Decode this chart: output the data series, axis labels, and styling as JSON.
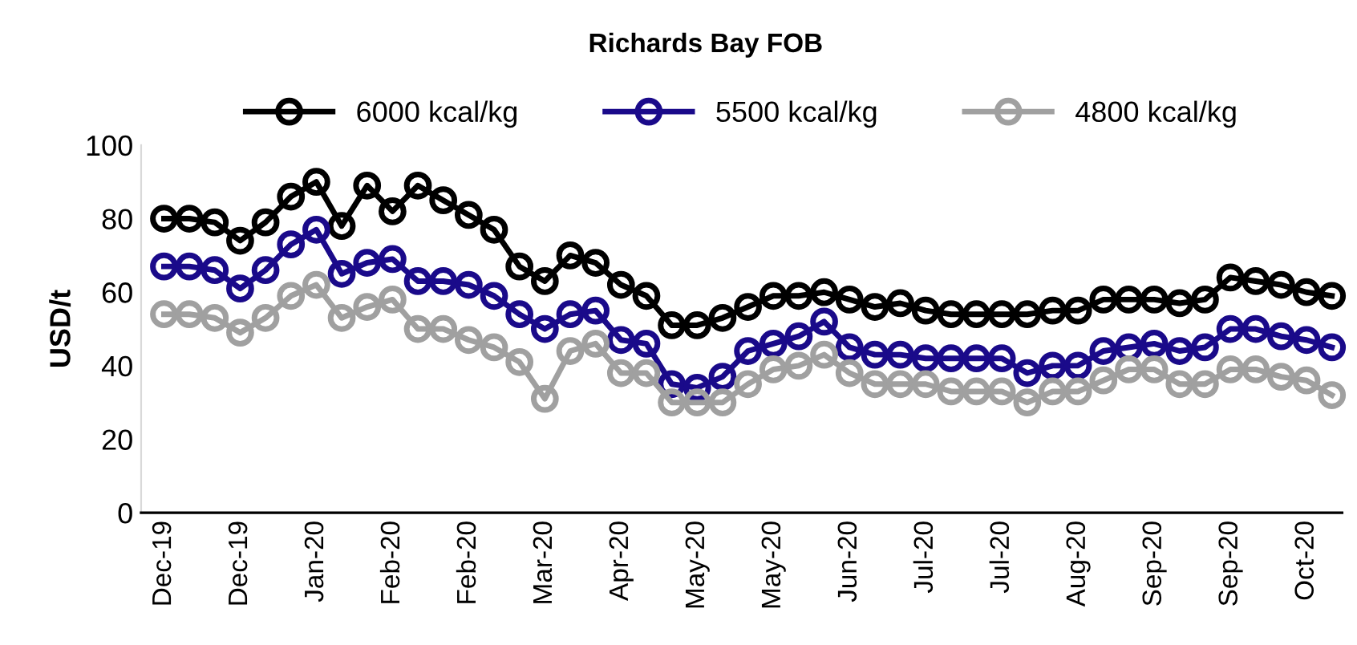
{
  "chart_data": {
    "type": "line",
    "title": "Richards Bay FOB",
    "ylabel": "USD/t",
    "categories": [
      "Dec-19",
      null,
      null,
      "Dec-19",
      null,
      null,
      "Jan-20",
      null,
      null,
      "Feb-20",
      null,
      null,
      "Feb-20",
      null,
      null,
      "Mar-20",
      null,
      null,
      "Apr-20",
      null,
      null,
      "May-20",
      null,
      null,
      "May-20",
      null,
      null,
      "Jun-20",
      null,
      null,
      "Jul-20",
      null,
      null,
      "Jul-20",
      null,
      null,
      "Aug-20",
      null,
      null,
      "Sep-20",
      null,
      null,
      "Sep-20",
      null,
      null,
      "Oct-20",
      null
    ],
    "series": [
      {
        "name": "6000 kcal/kg",
        "color": "#000000",
        "values": [
          80,
          80,
          79,
          74,
          79,
          86,
          90,
          78,
          89,
          82,
          89,
          85,
          81,
          77,
          67,
          63,
          70,
          68,
          62,
          59,
          51,
          51,
          53,
          56,
          59,
          59,
          60,
          58,
          56,
          57,
          55,
          54,
          54,
          54,
          54,
          55,
          55,
          58,
          58,
          58,
          57,
          58,
          64,
          63,
          62,
          60,
          59
        ]
      },
      {
        "name": "5500 kcal/kg",
        "color": "#1a0a8a",
        "values": [
          67,
          67,
          66,
          61,
          66,
          73,
          77,
          65,
          68,
          69,
          63,
          63,
          62,
          59,
          54,
          50,
          54,
          55,
          47,
          46,
          35,
          34,
          37,
          44,
          46,
          48,
          52,
          45,
          43,
          43,
          42,
          42,
          42,
          42,
          38,
          40,
          40,
          44,
          45,
          46,
          44,
          45,
          50,
          50,
          48,
          47,
          45
        ]
      },
      {
        "name": "4800 kcal/kg",
        "color": "#a0a0a0",
        "values": [
          54,
          54,
          53,
          49,
          53,
          59,
          62,
          53,
          56,
          58,
          50,
          50,
          47,
          45,
          41,
          31,
          44,
          46,
          38,
          38,
          30,
          30,
          30,
          35,
          39,
          40,
          43,
          38,
          35,
          35,
          35,
          33,
          33,
          33,
          30,
          33,
          33,
          36,
          39,
          39,
          35,
          35,
          39,
          39,
          37,
          36,
          32
        ]
      }
    ],
    "ylim": [
      0,
      100
    ],
    "yticks": [
      0,
      20,
      40,
      60,
      80,
      100
    ],
    "grid": false,
    "legend": "top",
    "marker": "circle",
    "line_style": "solid"
  }
}
